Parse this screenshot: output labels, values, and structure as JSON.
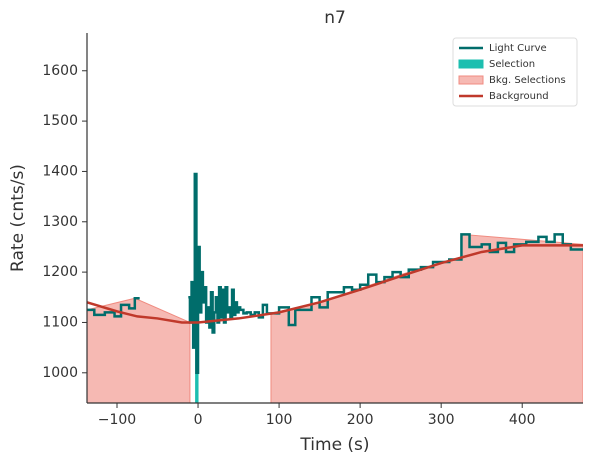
{
  "chart_data": {
    "type": "step",
    "title": "n7",
    "x_label": "Time (s)",
    "y_label": "Rate (cnts/s)",
    "xlim": [
      -137,
      475
    ],
    "ylim": [
      940,
      1675
    ],
    "xticks": [
      {
        "value": -100,
        "label": "−100"
      },
      0,
      100,
      200,
      300,
      400
    ],
    "yticks": [
      1000,
      1100,
      1200,
      1300,
      1400,
      1500,
      1600
    ],
    "legend": "upper right",
    "series": [
      {
        "name": "Light Curve",
        "kind": "step",
        "color": "#006d6b",
        "x": [
          -137,
          -128,
          -115,
          -103,
          -95,
          -85,
          -78,
          -72,
          -12,
          -10,
          -8,
          -6,
          -4,
          -2,
          0,
          2,
          4,
          6,
          8,
          10,
          12,
          14,
          16,
          18,
          20,
          22,
          24,
          26,
          28,
          30,
          32,
          34,
          36,
          38,
          40,
          42,
          44,
          46,
          48,
          50,
          52,
          56,
          60,
          65,
          70,
          75,
          80,
          85,
          90,
          100,
          112,
          120,
          140,
          150,
          160,
          180,
          190,
          200,
          210,
          220,
          230,
          240,
          250,
          260,
          275,
          290,
          310,
          325,
          335,
          350,
          360,
          370,
          380,
          390,
          405,
          420,
          430,
          440,
          450,
          460
        ],
        "values": [
          1125,
          1115,
          1120,
          1112,
          1135,
          1128,
          1148,
          null,
          1150,
          1100,
          1180,
          1050,
          1395,
          1000,
          1250,
          1120,
          1200,
          1140,
          1170,
          1100,
          1130,
          1090,
          1160,
          1080,
          1120,
          1150,
          1100,
          1170,
          1110,
          1165,
          1100,
          1170,
          1120,
          1130,
          1110,
          1165,
          1115,
          1140,
          1120,
          1130,
          1125,
          1118,
          1120,
          1115,
          1120,
          1110,
          1135,
          1118,
          1118,
          1130,
          1095,
          1125,
          1150,
          1130,
          1160,
          1170,
          1165,
          1175,
          1195,
          1180,
          1190,
          1200,
          1190,
          1205,
          1210,
          1220,
          1225,
          1275,
          1250,
          1255,
          1240,
          1258,
          1240,
          1255,
          1260,
          1270,
          1260,
          1275,
          1255,
          1245
        ]
      },
      {
        "name": "Selection",
        "kind": "area",
        "color": "#1dbfb0",
        "x": [
          -3,
          0
        ],
        "values": [
          1060,
          1060
        ]
      },
      {
        "name": "Bkg. Selections",
        "kind": "area",
        "color": "#f08b80",
        "x": [
          -137,
          -78,
          -10,
          null,
          90,
          150,
          250,
          325,
          326,
          475
        ],
        "values": [
          1125,
          1148,
          1100,
          null,
          1118,
          1140,
          1195,
          1230,
          1275,
          1255
        ]
      },
      {
        "name": "Background",
        "kind": "line",
        "color": "#c0392b",
        "x": [
          -137,
          -100,
          -75,
          -50,
          -20,
          0,
          50,
          100,
          150,
          200,
          250,
          300,
          350,
          400,
          475
        ],
        "values": [
          1140,
          1122,
          1112,
          1108,
          1100,
          1100,
          1108,
          1120,
          1140,
          1165,
          1192,
          1218,
          1240,
          1253,
          1253
        ]
      }
    ]
  }
}
